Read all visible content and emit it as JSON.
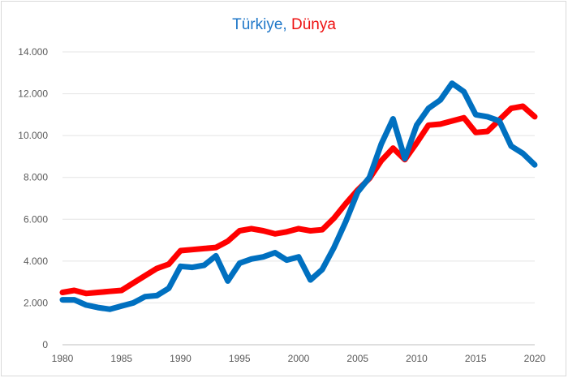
{
  "chart_data": {
    "type": "line",
    "title_parts": [
      {
        "text": "Türkiye"
      },
      {
        "text": ", "
      },
      {
        "text": "Dünya"
      }
    ],
    "x": [
      1980,
      1981,
      1982,
      1983,
      1984,
      1985,
      1986,
      1987,
      1988,
      1989,
      1990,
      1991,
      1992,
      1993,
      1994,
      1995,
      1996,
      1997,
      1998,
      1999,
      2000,
      2001,
      2002,
      2003,
      2004,
      2005,
      2006,
      2007,
      2008,
      2009,
      2010,
      2011,
      2012,
      2013,
      2014,
      2015,
      2016,
      2017,
      2018,
      2019,
      2020
    ],
    "xticks": [
      "1980",
      "1985",
      "1990",
      "1995",
      "2000",
      "2005",
      "2010",
      "2015",
      "2020"
    ],
    "yticks": [
      "0",
      "2.000",
      "4.000",
      "6.000",
      "8.000",
      "10.000",
      "12.000",
      "14.000"
    ],
    "ylim": [
      0,
      14000
    ],
    "xlim": [
      1980,
      2020
    ],
    "grid": true,
    "series": [
      {
        "name": "Türkiye",
        "color": "#0070c0",
        "values": [
          2150,
          2150,
          1900,
          1780,
          1700,
          1850,
          2000,
          2300,
          2350,
          2700,
          3750,
          3700,
          3800,
          4250,
          3050,
          3900,
          4100,
          4200,
          4400,
          4050,
          4200,
          3100,
          3600,
          4650,
          5900,
          7300,
          8000,
          9600,
          10800,
          8900,
          10500,
          11300,
          11700,
          12500,
          12100,
          11000,
          10900,
          10700,
          9500,
          9150,
          8600
        ]
      },
      {
        "name": "Dünya",
        "color": "#ff0000",
        "values": [
          2500,
          2600,
          2450,
          2500,
          2550,
          2600,
          2950,
          3300,
          3650,
          3850,
          4500,
          4550,
          4600,
          4650,
          4950,
          5450,
          5550,
          5450,
          5300,
          5400,
          5550,
          5450,
          5500,
          6050,
          6750,
          7400,
          7950,
          8800,
          9400,
          8850,
          9650,
          10500,
          10550,
          10700,
          10850,
          10150,
          10200,
          10750,
          11300,
          11400,
          10900
        ]
      }
    ]
  }
}
